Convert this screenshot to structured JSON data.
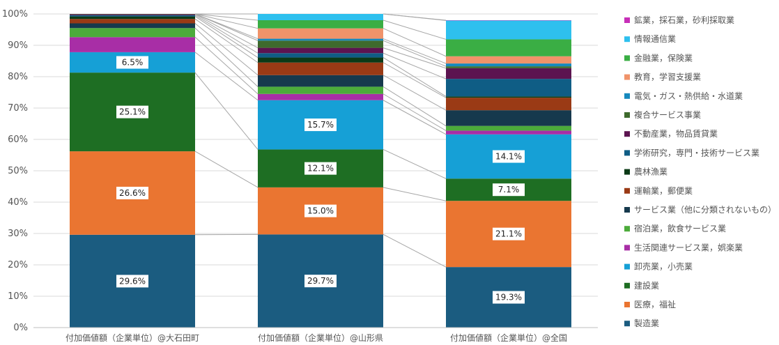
{
  "chart_data": {
    "type": "bar",
    "stacked": "percent",
    "ylim": [
      0,
      100
    ],
    "yticks": [
      "0%",
      "10%",
      "20%",
      "30%",
      "40%",
      "50%",
      "60%",
      "70%",
      "80%",
      "90%",
      "100%"
    ],
    "grid": true,
    "legend": "right",
    "categories": [
      "付加価値額（企業単位）@大石田町",
      "付加価値額（企業単位）@山形県",
      "付加価値額（企業単位）@全国"
    ],
    "series": [
      {
        "name": "製造業",
        "color": "#1b5c80",
        "values": [
          29.6,
          29.7,
          19.3
        ],
        "labels": [
          "29.6%",
          "29.7%",
          "19.3%"
        ]
      },
      {
        "name": "医療，福祉",
        "color": "#ea7531",
        "values": [
          26.6,
          15.0,
          21.1
        ],
        "labels": [
          "26.6%",
          "15.0%",
          "21.1%"
        ]
      },
      {
        "name": "建設業",
        "color": "#1e6e23",
        "values": [
          25.1,
          12.1,
          7.1
        ],
        "labels": [
          "25.1%",
          "12.1%",
          "7.1%"
        ]
      },
      {
        "name": "卸売業，小売業",
        "color": "#16a0d6",
        "values": [
          6.5,
          15.7,
          14.1
        ],
        "labels": [
          "6.5%",
          "15.7%",
          "14.1%"
        ]
      },
      {
        "name": "生活関連サービス業，娯楽業",
        "color": "#a82ea6",
        "values": [
          4.8,
          2.0,
          1.2
        ],
        "labels": [
          "",
          "",
          ""
        ]
      },
      {
        "name": "宿泊業，飲食サービス業",
        "color": "#4cab3b",
        "values": [
          2.9,
          2.3,
          1.5
        ],
        "labels": [
          "",
          "",
          ""
        ]
      },
      {
        "name": "サービス業（他に分類されないもの）",
        "color": "#16394d",
        "values": [
          1.5,
          3.7,
          5.0
        ],
        "labels": [
          "",
          "",
          ""
        ]
      },
      {
        "name": "運輸業，郵便業",
        "color": "#9a3a15",
        "values": [
          1.4,
          4.0,
          4.0
        ],
        "labels": [
          "",
          "",
          ""
        ]
      },
      {
        "name": "農林漁業",
        "color": "#0b3a16",
        "values": [
          0.8,
          1.6,
          0.4
        ],
        "labels": [
          "",
          "",
          ""
        ]
      },
      {
        "name": "学術研究，専門・技術サービス業",
        "color": "#0f5d85",
        "values": [
          0.4,
          1.4,
          5.6
        ],
        "labels": [
          "",
          "",
          ""
        ]
      },
      {
        "name": "不動産業，物品賃貸業",
        "color": "#5c1450",
        "values": [
          0.3,
          1.7,
          3.4
        ],
        "labels": [
          "",
          "",
          ""
        ]
      },
      {
        "name": "複合サービス事業",
        "color": "#3e6a2d",
        "values": [
          0.1,
          2.3,
          0.6
        ],
        "labels": [
          "",
          "",
          ""
        ]
      },
      {
        "name": "電気・ガス・熱供給・水道業",
        "color": "#1689bd",
        "values": [
          0.0,
          0.6,
          0.9
        ],
        "labels": [
          "",
          "",
          ""
        ]
      },
      {
        "name": "教育，学習支援業",
        "color": "#f0936a",
        "values": [
          0.0,
          3.3,
          2.3
        ],
        "labels": [
          "",
          "",
          ""
        ]
      },
      {
        "name": "金融業，保険業",
        "color": "#3aae44",
        "values": [
          0.0,
          2.6,
          5.4
        ],
        "labels": [
          "",
          "",
          ""
        ]
      },
      {
        "name": "情報通信業",
        "color": "#2ec0ee",
        "values": [
          0.0,
          2.0,
          6.0
        ],
        "labels": [
          "",
          "",
          ""
        ]
      },
      {
        "name": "鉱業，採石業，砂利採取業",
        "color": "#c72fb8",
        "values": [
          0.0,
          0.0,
          0.1
        ],
        "labels": [
          "",
          "",
          ""
        ]
      }
    ]
  }
}
